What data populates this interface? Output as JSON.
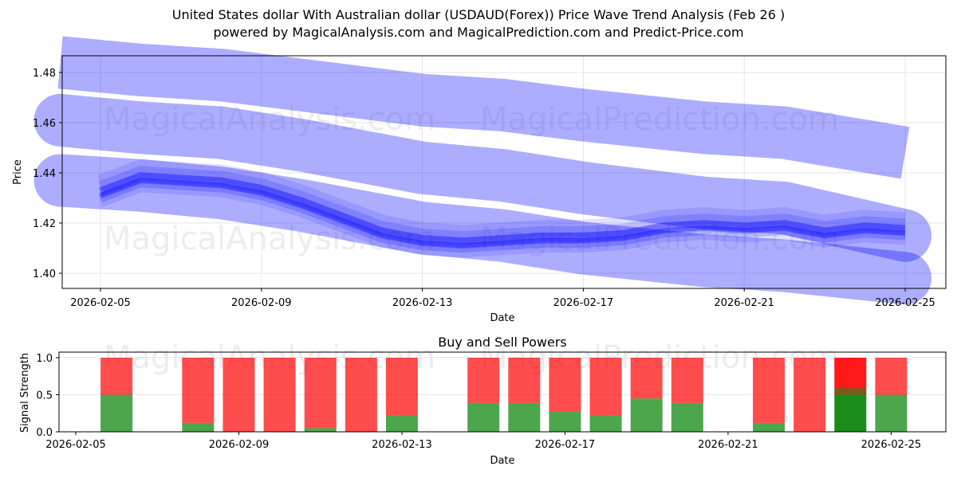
{
  "header": {
    "title": "United States dollar With Australian dollar (USDAUD(Forex)) Price Wave Trend Analysis (Feb 26 )",
    "subtitle": "powered by MagicalAnalysis.com and MagicalPrediction.com and Predict-Price.com"
  },
  "watermarks": {
    "left": "MagicalAnalysis.com",
    "right": "MagicalPrediction.com"
  },
  "colors": {
    "wave": "#0000ff",
    "buy": "#008000",
    "sell": "#ff0000"
  },
  "chart_data": [
    {
      "type": "line",
      "title": "",
      "xlabel": "Date",
      "ylabel": "Price",
      "ylim": [
        1.394,
        1.487
      ],
      "yticks": [
        "1.40",
        "1.42",
        "1.44",
        "1.46",
        "1.48"
      ],
      "xticks": [
        "2026-02-05",
        "2026-02-09",
        "2026-02-13",
        "2026-02-17",
        "2026-02-21",
        "2026-02-25"
      ],
      "grid": true,
      "series": [
        {
          "name": "upper wave band",
          "x": [
            "2026-02-04",
            "2026-02-06",
            "2026-02-08",
            "2026-02-10",
            "2026-02-13",
            "2026-02-15",
            "2026-02-17",
            "2026-02-20",
            "2026-02-22",
            "2026-02-25"
          ],
          "values": [
            1.484,
            1.481,
            1.479,
            1.475,
            1.469,
            1.467,
            1.463,
            1.458,
            1.456,
            1.448
          ]
        },
        {
          "name": "middle wave band",
          "x": [
            "2026-02-04",
            "2026-02-06",
            "2026-02-08",
            "2026-02-10",
            "2026-02-13",
            "2026-02-15",
            "2026-02-17",
            "2026-02-20",
            "2026-02-22",
            "2026-02-25"
          ],
          "values": [
            1.461,
            1.458,
            1.456,
            1.451,
            1.442,
            1.439,
            1.434,
            1.428,
            1.426,
            1.415
          ]
        },
        {
          "name": "lower wave band",
          "x": [
            "2026-02-04",
            "2026-02-06",
            "2026-02-08",
            "2026-02-10",
            "2026-02-13",
            "2026-02-15",
            "2026-02-17",
            "2026-02-20",
            "2026-02-22",
            "2026-02-25"
          ],
          "values": [
            1.437,
            1.435,
            1.432,
            1.427,
            1.418,
            1.415,
            1.41,
            1.405,
            1.403,
            1.398
          ]
        },
        {
          "name": "price wave core",
          "x": [
            "2026-02-05",
            "2026-02-06",
            "2026-02-08",
            "2026-02-09",
            "2026-02-10",
            "2026-02-11",
            "2026-02-12",
            "2026-02-13",
            "2026-02-14",
            "2026-02-15",
            "2026-02-16",
            "2026-02-17",
            "2026-02-18",
            "2026-02-19",
            "2026-02-20",
            "2026-02-21",
            "2026-02-22",
            "2026-02-23",
            "2026-02-24",
            "2026-02-25"
          ],
          "values": [
            1.432,
            1.438,
            1.436,
            1.433,
            1.428,
            1.422,
            1.416,
            1.413,
            1.412,
            1.413,
            1.414,
            1.414,
            1.415,
            1.418,
            1.419,
            1.418,
            1.419,
            1.416,
            1.418,
            1.417
          ]
        }
      ]
    },
    {
      "type": "bar",
      "title": "Buy and Sell Powers",
      "xlabel": "Date",
      "ylabel": "Signal Strength",
      "ylim": [
        0,
        1.05
      ],
      "yticks": [
        "0.0",
        "0.5",
        "1.0"
      ],
      "xticks": [
        "2026-02-05",
        "2026-02-09",
        "2026-02-13",
        "2026-02-17",
        "2026-02-21",
        "2026-02-25"
      ],
      "stacked": true,
      "categories": [
        "2026-02-06",
        "2026-02-08",
        "2026-02-09",
        "2026-02-10",
        "2026-02-11",
        "2026-02-12",
        "2026-02-13",
        "2026-02-15",
        "2026-02-16",
        "2026-02-17",
        "2026-02-18",
        "2026-02-19",
        "2026-02-20",
        "2026-02-22",
        "2026-02-23",
        "2026-02-24",
        "2026-02-25"
      ],
      "series": [
        {
          "name": "Buy",
          "color": "#008000",
          "values": [
            0.5,
            0.12,
            0.0,
            0.0,
            0.05,
            0.0,
            0.22,
            0.39,
            0.39,
            0.27,
            0.22,
            0.45,
            0.39,
            0.12,
            0.0,
            0.5,
            0.5
          ]
        },
        {
          "name": "Sell",
          "color": "#ff0000",
          "values": [
            0.5,
            0.88,
            1.0,
            1.0,
            0.95,
            1.0,
            0.78,
            0.61,
            0.61,
            0.73,
            0.78,
            0.55,
            0.61,
            0.88,
            1.0,
            0.5,
            0.5
          ]
        }
      ],
      "highlight": {
        "category": "2026-02-24",
        "buy_overlay": 0.6
      }
    }
  ]
}
